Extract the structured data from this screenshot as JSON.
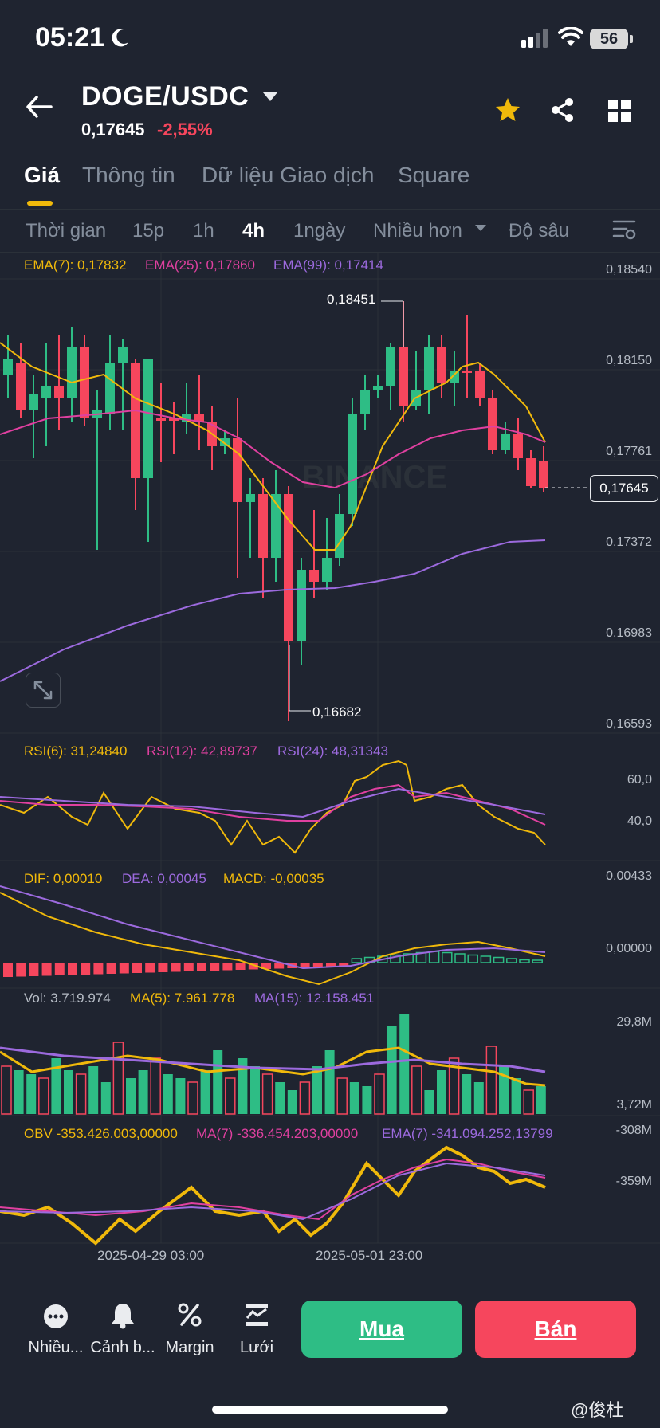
{
  "status": {
    "time": "05:21",
    "battery": "56"
  },
  "header": {
    "pair": "DOGE/USDC",
    "price": "0,17645",
    "change": "-2,55%"
  },
  "tabs": [
    {
      "label": "Giá"
    },
    {
      "label": "Thông tin"
    },
    {
      "label": "Dữ liệu Giao dịch"
    },
    {
      "label": "Square"
    }
  ],
  "timeframes": [
    {
      "label": "Thời gian"
    },
    {
      "label": "15p"
    },
    {
      "label": "1h"
    },
    {
      "label": "4h"
    },
    {
      "label": "1ngày"
    },
    {
      "label": "Nhiều hơn"
    },
    {
      "label": "Độ sâu"
    }
  ],
  "main_chart": {
    "ema7_label": "EMA(7): 0,17832",
    "ema25_label": "EMA(25): 0,17860",
    "ema99_label": "EMA(99): 0,17414",
    "y_ticks": [
      "0,18540",
      "0,18150",
      "0,17761",
      "0,17372",
      "0,16983",
      "0,16593"
    ],
    "high_label": "0,18451",
    "low_label": "0,16682",
    "current_price": "0,17645",
    "watermark": "BINANCE",
    "colors": {
      "up": "#2ebd85",
      "down": "#f6465d",
      "ema7": "#f0b90b",
      "ema25": "#e040a0",
      "ema99": "#9c6ade"
    }
  },
  "rsi": {
    "rsi6": "RSI(6): 31,24840",
    "rsi12": "RSI(12): 42,89737",
    "rsi24": "RSI(24): 48,31343",
    "y_ticks": [
      "60,0",
      "40,0"
    ]
  },
  "macd": {
    "dif": "DIF: 0,00010",
    "dea": "DEA: 0,00045",
    "macd": "MACD: -0,00035",
    "y_ticks": [
      "0,00433",
      "0,00000"
    ]
  },
  "volume": {
    "vol": "Vol: 3.719.974",
    "ma5": "MA(5): 7.961.778",
    "ma15": "MA(15): 12.158.451",
    "y_ticks": [
      "29,8M",
      "3,72M"
    ]
  },
  "obv": {
    "obv": "OBV -353.426.003,00000",
    "ma7": "MA(7) -336.454.203,00000",
    "ema7": "EMA(7) -341.094.252,13799",
    "y_ticks": [
      "-308M",
      "-359M"
    ]
  },
  "dates": [
    "2025-04-29 03:00",
    "2025-05-01 23:00"
  ],
  "bottom_nav": [
    {
      "label": "Nhiều...",
      "icon": "more-icon"
    },
    {
      "label": "Cảnh b...",
      "icon": "bell-icon"
    },
    {
      "label": "Margin",
      "icon": "margin-icon"
    },
    {
      "label": "Lưới",
      "icon": "grid-bot-icon"
    }
  ],
  "actions": {
    "buy": "Mua",
    "sell": "Bán"
  },
  "footer_watermark": "@俊杜"
}
